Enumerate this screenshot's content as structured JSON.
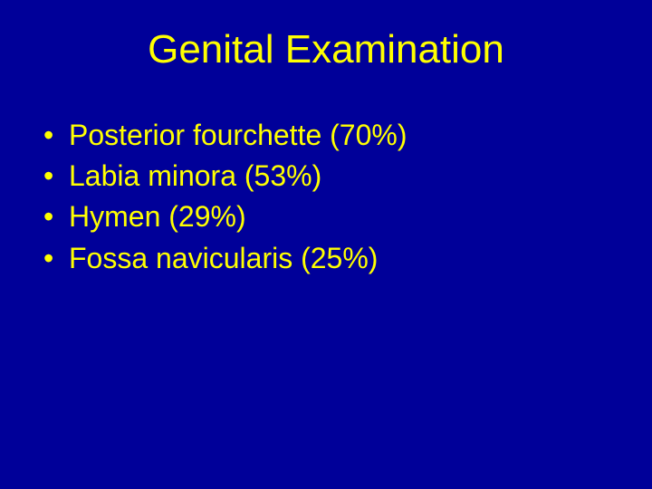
{
  "background_color": "#000099",
  "text_color": "#ffff00",
  "title_fontsize": 44,
  "body_fontsize": 32,
  "title": "Genital Examination",
  "bullets": {
    "0": {
      "text": "Posterior fourchette (70%)"
    },
    "1": {
      "text": "Labia minora (53%)"
    },
    "2": {
      "text": "Hymen (29%)"
    },
    "3": {
      "text": "Fossa navicularis (25%)"
    }
  }
}
